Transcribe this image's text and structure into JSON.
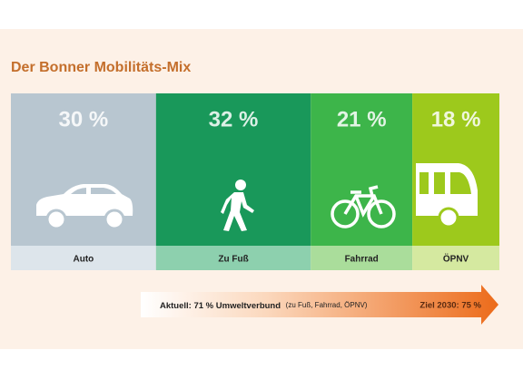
{
  "chart_data": {
    "type": "stacked-bar",
    "title": "Der Bonner Mobilitäts-Mix",
    "categories": [
      "Auto",
      "Zu Fuß",
      "Fahrrad",
      "ÖPNV"
    ],
    "values": [
      30,
      32,
      21,
      18
    ],
    "value_labels": [
      "30 %",
      "32 %",
      "21 %",
      "18 %"
    ],
    "colors": [
      "#b8c6d0",
      "#19985a",
      "#3db54a",
      "#9dc91c"
    ],
    "label_colors": [
      "#dde5eb",
      "#8dd0ae",
      "#aadd9b",
      "#d5e9a0"
    ],
    "annotation": {
      "current": "Aktuell: 71 % Umweltverbund",
      "note": "(zu Fuß, Fahrrad, ÖPNV)",
      "target": "Ziel 2030: 75 %"
    }
  }
}
